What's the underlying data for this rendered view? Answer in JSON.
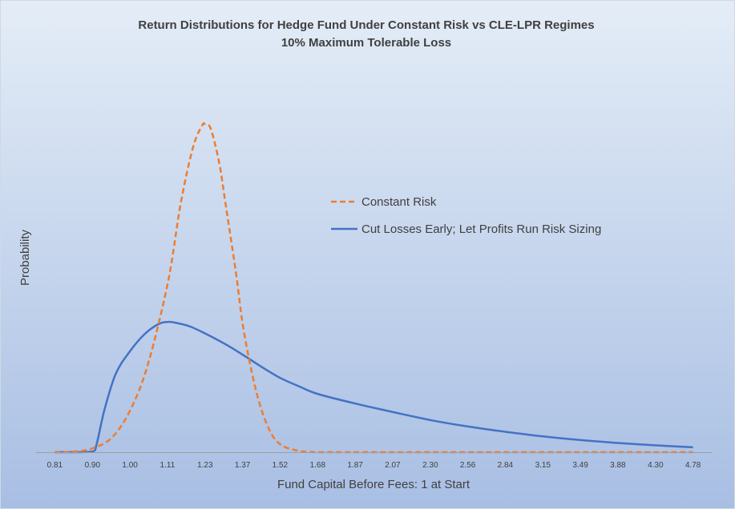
{
  "chart_data": {
    "type": "line",
    "title": "Return Distributions for Hedge Fund Under Constant Risk vs CLE-LPR Regimes",
    "subtitle": "10% Maximum Tolerable Loss",
    "xlabel": "Fund Capital Before Fees: 1 at Start",
    "ylabel": "Probability",
    "x_axis_scale": "log",
    "x_tick_labels": [
      "0.81",
      "0.90",
      "1.00",
      "1.11",
      "1.23",
      "1.37",
      "1.52",
      "1.68",
      "1.87",
      "2.07",
      "2.30",
      "2.56",
      "2.84",
      "3.15",
      "3.49",
      "3.88",
      "4.30",
      "4.78"
    ],
    "grid": false,
    "legend_position": "center-right",
    "series": [
      {
        "name": "Constant Risk",
        "color": "#ED7D31",
        "dash": "dashed",
        "x": [
          0.81,
          0.855,
          0.9,
          0.95,
          1.0,
          1.05,
          1.11,
          1.15,
          1.19,
          1.22,
          1.23,
          1.25,
          1.28,
          1.3,
          1.34,
          1.37,
          1.42,
          1.47,
          1.52,
          1.6,
          1.68,
          1.87,
          2.3,
          3.15,
          4.78
        ],
        "y": [
          0.0,
          0.002,
          0.012,
          0.045,
          0.13,
          0.27,
          0.52,
          0.76,
          0.93,
          0.995,
          1.0,
          0.985,
          0.88,
          0.77,
          0.55,
          0.37,
          0.18,
          0.07,
          0.022,
          0.004,
          0.0,
          0.0,
          0.0,
          0.0,
          0.0
        ]
      },
      {
        "name": "Cut Losses Early; Let Profits Run Risk Sizing",
        "color": "#4472C4",
        "dash": "solid",
        "x": [
          0.81,
          0.86,
          0.9,
          0.91,
          0.93,
          0.96,
          1.0,
          1.04,
          1.08,
          1.11,
          1.14,
          1.18,
          1.23,
          1.3,
          1.37,
          1.45,
          1.52,
          1.6,
          1.68,
          1.87,
          2.07,
          2.3,
          2.56,
          2.84,
          3.15,
          3.49,
          3.88,
          4.3,
          4.78
        ],
        "y": [
          0.0,
          0.0,
          0.002,
          0.025,
          0.13,
          0.24,
          0.31,
          0.36,
          0.39,
          0.397,
          0.393,
          0.383,
          0.362,
          0.33,
          0.295,
          0.255,
          0.225,
          0.2,
          0.178,
          0.148,
          0.123,
          0.098,
          0.078,
          0.062,
          0.048,
          0.037,
          0.028,
          0.021,
          0.015
        ]
      }
    ]
  },
  "colors": {
    "background_top": "#E4EDF7",
    "background_bottom": "#A8BEE3",
    "axis_line": "#9E9E9E"
  }
}
